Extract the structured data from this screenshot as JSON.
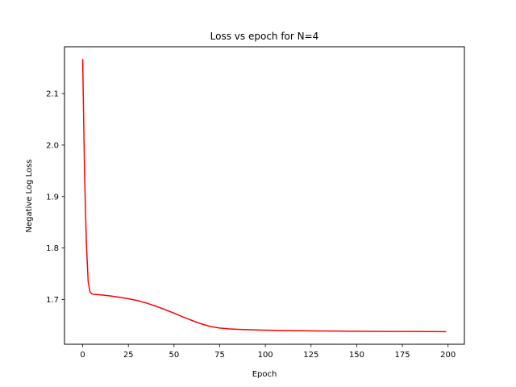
{
  "chart_data": {
    "type": "line",
    "title": "Loss vs epoch for N=4",
    "xlabel": "Epoch",
    "ylabel": "Negative Log Loss",
    "xlim": [
      -9.95,
      208.95
    ],
    "ylim": [
      1.613,
      2.191
    ],
    "x_ticks": [
      0,
      25,
      50,
      75,
      100,
      125,
      150,
      175,
      200
    ],
    "y_ticks": [
      1.7,
      1.8,
      1.9,
      2.0,
      2.1
    ],
    "y_tick_labels": [
      "1.7",
      "1.8",
      "1.9",
      "2.0",
      "2.1"
    ],
    "grid": false,
    "series": [
      {
        "color": "#ff0000",
        "x": [
          0,
          1,
          2,
          3,
          4,
          5,
          6,
          8,
          10,
          15,
          20,
          25,
          30,
          35,
          40,
          45,
          50,
          55,
          60,
          65,
          70,
          75,
          80,
          85,
          90,
          95,
          100,
          110,
          120,
          130,
          140,
          150,
          160,
          170,
          180,
          190,
          199
        ],
        "y": [
          2.167,
          1.95,
          1.81,
          1.735,
          1.715,
          1.711,
          1.71,
          1.7095,
          1.709,
          1.707,
          1.7045,
          1.7015,
          1.698,
          1.693,
          1.687,
          1.6805,
          1.6735,
          1.666,
          1.659,
          1.6525,
          1.6475,
          1.6445,
          1.643,
          1.642,
          1.6413,
          1.6408,
          1.6404,
          1.6398,
          1.6393,
          1.6389,
          1.6386,
          1.6383,
          1.6381,
          1.6379,
          1.6378,
          1.6377,
          1.6375
        ]
      }
    ]
  }
}
